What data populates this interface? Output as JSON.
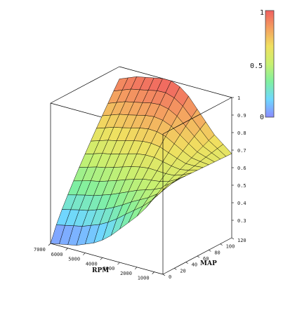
{
  "chart_data": {
    "type": "surface",
    "title": "",
    "x_axis": {
      "label": "RPM",
      "ticks": [
        "7000",
        "6000",
        "5000",
        "4000",
        "3000",
        "2000",
        "1000"
      ],
      "range": [
        500,
        7000
      ]
    },
    "y_axis": {
      "label": "MAP",
      "ticks": [
        "0",
        "20",
        "40",
        "60",
        "80",
        "100",
        "120"
      ],
      "range": [
        0,
        120
      ]
    },
    "z_axis": {
      "label": "",
      "ticks": [
        "0.3",
        "0.4",
        "0.5",
        "0.6",
        "0.7",
        "0.8",
        "0.9",
        "1"
      ],
      "range": [
        0.2,
        1.0
      ]
    },
    "rpm": [
      500,
      1000,
      1500,
      2000,
      2500,
      3000,
      3500,
      4000,
      4500,
      5000,
      5500,
      6000,
      6500,
      7000
    ],
    "map": [
      0,
      10,
      20,
      30,
      40,
      50,
      60,
      70,
      80,
      90,
      100,
      110,
      120
    ],
    "z_low_map": [
      0.7,
      0.62,
      0.55,
      0.49,
      0.44,
      0.39,
      0.34,
      0.3,
      0.27,
      0.25,
      0.23,
      0.22,
      0.21,
      0.2
    ],
    "z_high_map": [
      0.68,
      0.72,
      0.76,
      0.82,
      0.88,
      0.94,
      0.98,
      1.0,
      1.0,
      0.99,
      0.98,
      0.97,
      0.95,
      0.93
    ],
    "colorbar": {
      "min": 0,
      "max": 1,
      "ticks": [
        "0",
        "0.5",
        "1"
      ]
    },
    "colormap": [
      "#8a8aff",
      "#6fd8ff",
      "#80f0a0",
      "#c8f070",
      "#f0e060",
      "#f4a060",
      "#f06060"
    ],
    "grid": true,
    "mesh_color": "#000000"
  }
}
